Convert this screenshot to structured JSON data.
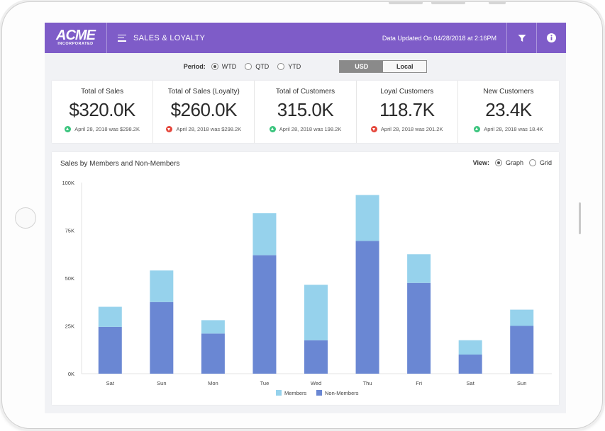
{
  "header": {
    "logo_main": "ACME",
    "logo_sub": "INCORPORATED",
    "title": "SALES & LOYALTY",
    "updated": "Data Updated On 04/28/2018 at 2:16PM"
  },
  "period": {
    "label": "Period:",
    "options": [
      "WTD",
      "QTD",
      "YTD"
    ],
    "selected": "WTD",
    "currency_options": [
      "USD",
      "Local"
    ],
    "currency_selected": "USD"
  },
  "kpis": [
    {
      "label": "Total of Sales",
      "value": "$320.0K",
      "trend": "up",
      "comparison": "April 28, 2018 was $298.2K"
    },
    {
      "label": "Total of Sales (Loyalty)",
      "value": "$260.0K",
      "trend": "down",
      "comparison": "April 28, 2018 was $298.2K"
    },
    {
      "label": "Total of Customers",
      "value": "315.0K",
      "trend": "up",
      "comparison": "April 28, 2018 was 198.2K"
    },
    {
      "label": "Loyal Customers",
      "value": "118.7K",
      "trend": "down",
      "comparison": "April 28, 2018 was 201.2K"
    },
    {
      "label": "New Customers",
      "value": "23.4K",
      "trend": "up",
      "comparison": "April 28, 2018 was 18.4K"
    }
  ],
  "chart_header": {
    "title": "Sales by Members and Non-Members",
    "view_label": "View:",
    "view_options": [
      "Graph",
      "Grid"
    ],
    "view_selected": "Graph"
  },
  "colors": {
    "brand": "#7e5cc8",
    "members": "#96d2ec",
    "non_members": "#6a87d3",
    "trend_up": "#3ac47d",
    "trend_down": "#e5463b"
  },
  "chart_data": {
    "type": "bar",
    "stacked": true,
    "title": "Sales by Members and Non-Members",
    "categories": [
      "Sat",
      "Sun",
      "Mon",
      "Tue",
      "Wed",
      "Thu",
      "Fri",
      "Sat",
      "Sun"
    ],
    "series": [
      {
        "name": "Non-Members",
        "values": [
          24500,
          37500,
          21000,
          62000,
          17500,
          69500,
          47500,
          10000,
          25000
        ]
      },
      {
        "name": "Members",
        "values": [
          10500,
          16500,
          7000,
          22000,
          29000,
          24000,
          15000,
          7500,
          8500
        ]
      }
    ],
    "ylim": [
      0,
      100000
    ],
    "yticks": [
      0,
      25000,
      50000,
      75000,
      100000
    ],
    "ytick_labels": [
      "0K",
      "25K",
      "50K",
      "75K",
      "100K"
    ],
    "legend": [
      "Members",
      "Non-Members"
    ],
    "legend_position": "bottom"
  }
}
